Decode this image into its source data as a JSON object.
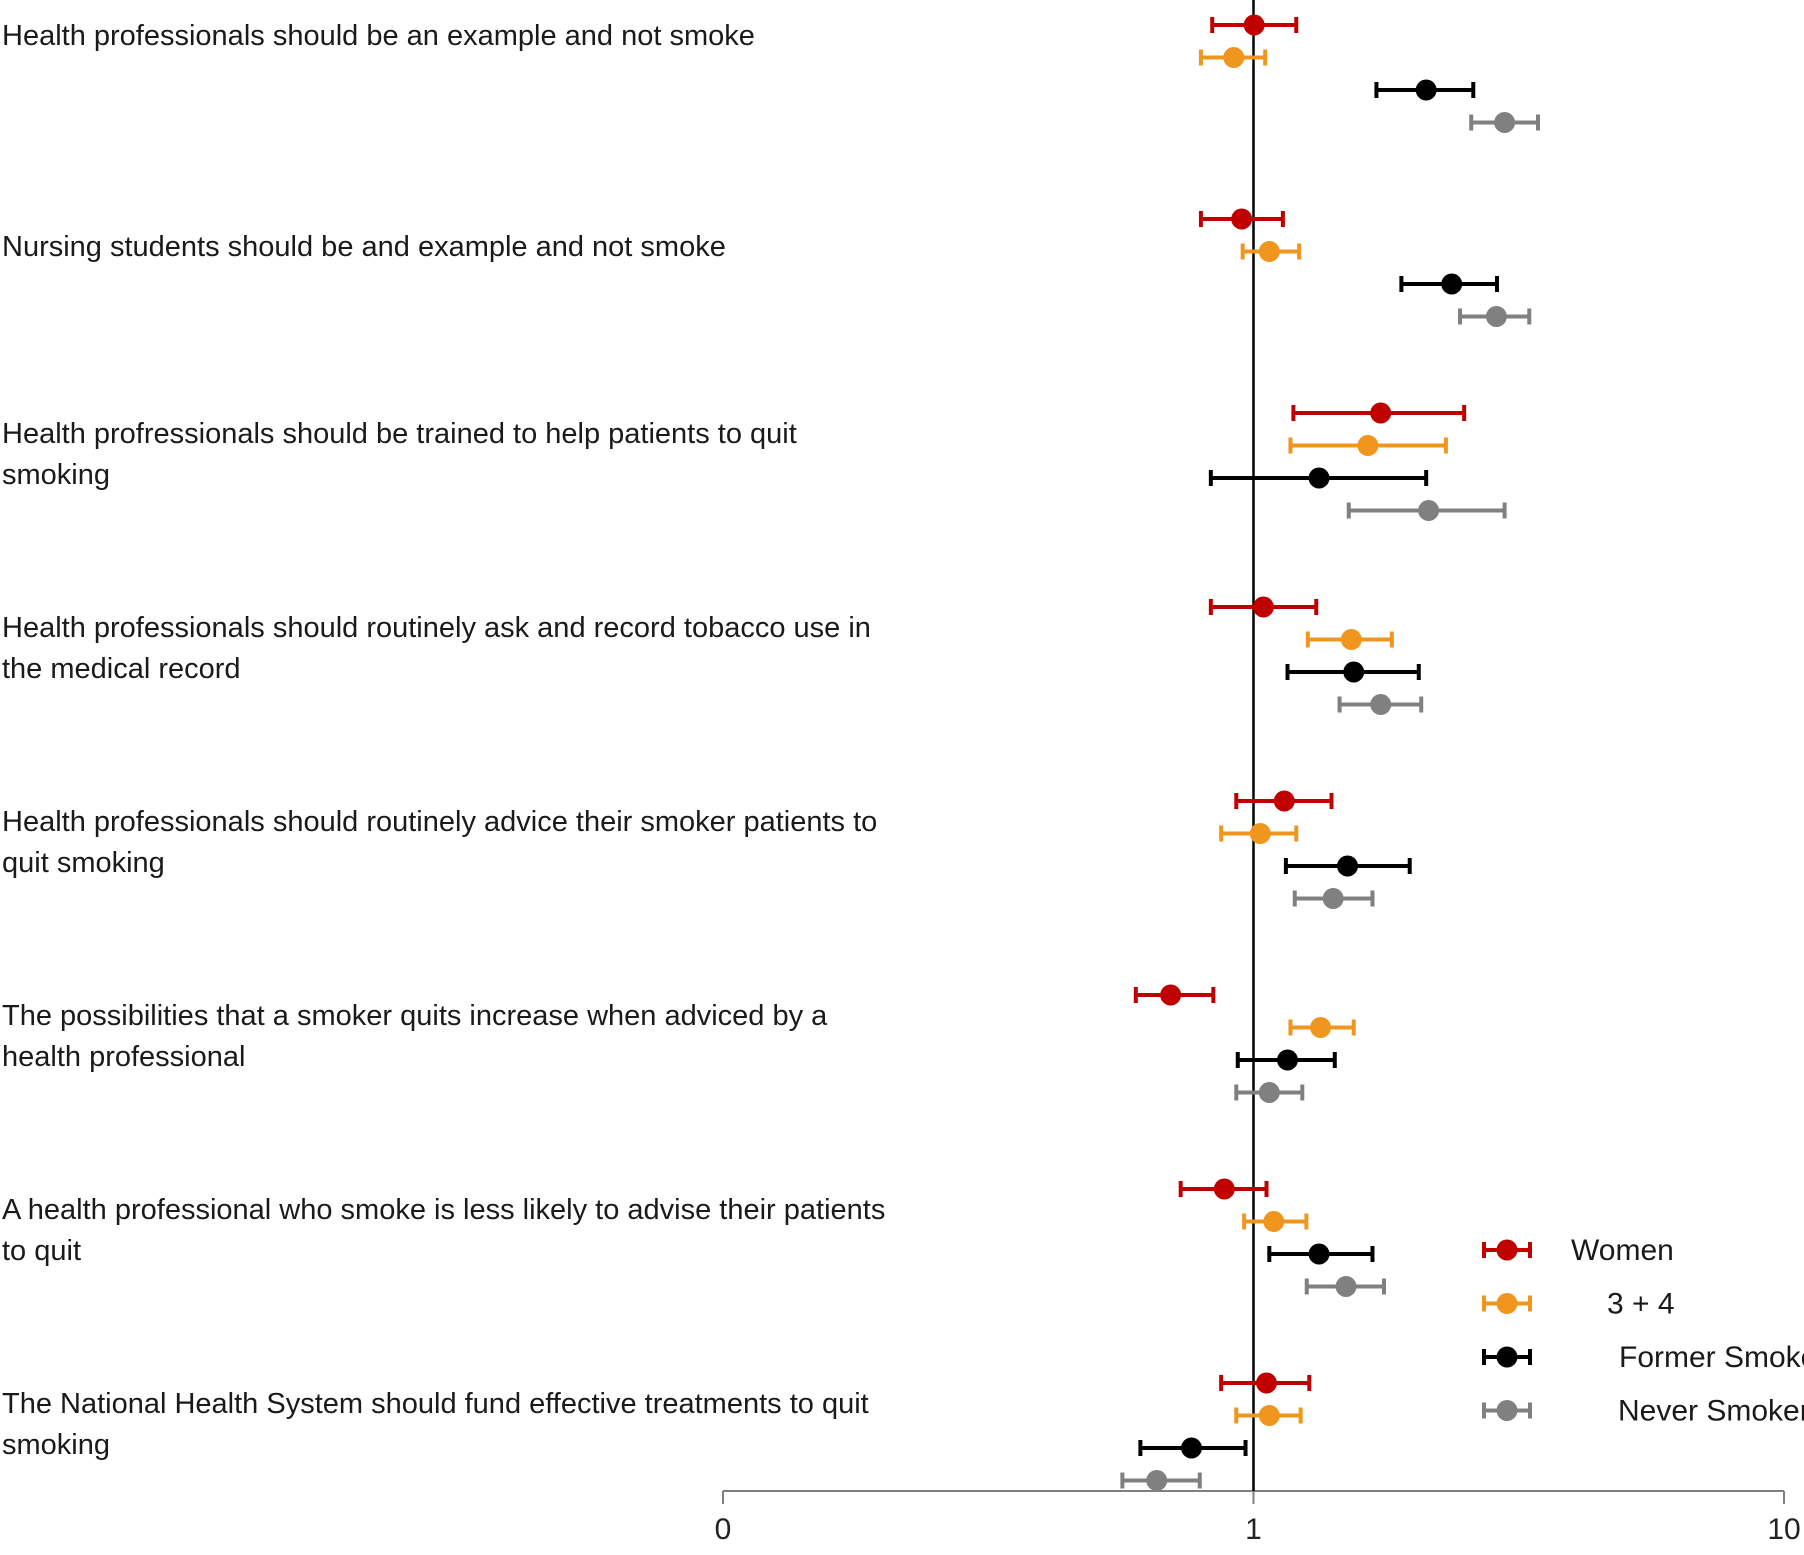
{
  "chart_data": {
    "type": "forest",
    "title": "",
    "xlabel": "",
    "ylabel": "",
    "x_scale": "log",
    "x_ticks": [
      {
        "value": 0.1,
        "label": "0"
      },
      {
        "value": 1,
        "label": "1"
      },
      {
        "value": 10,
        "label": "10"
      }
    ],
    "reference_line": 1,
    "legend_position": "bottom-right",
    "series": [
      {
        "name": "Women",
        "color": "#c00000"
      },
      {
        "name": "3 + 4",
        "color": "#f0961e"
      },
      {
        "name": "Former Smoker",
        "color": "#000000"
      },
      {
        "name": "Never Smoker",
        "color": "#808080"
      }
    ],
    "items": [
      {
        "label_lines": [
          "Health professionals should be an example and not smoke"
        ],
        "points": [
          {
            "series": "Women",
            "est": 1.003,
            "lo": 0.836,
            "hi": 1.204
          },
          {
            "series": "3 + 4",
            "est": 0.918,
            "lo": 0.796,
            "hi": 1.052
          },
          {
            "series": "Former Smoker",
            "est": 2.116,
            "lo": 1.705,
            "hi": 2.596
          },
          {
            "series": "Never Smoker",
            "est": 2.974,
            "lo": 2.573,
            "hi": 3.438
          }
        ]
      },
      {
        "label_lines": [
          "Nursing students should be and example and not smoke"
        ],
        "points": [
          {
            "series": "Women",
            "est": 0.95,
            "lo": 0.796,
            "hi": 1.136
          },
          {
            "series": "3 + 4",
            "est": 1.071,
            "lo": 0.954,
            "hi": 1.219
          },
          {
            "series": "Former Smoker",
            "est": 2.364,
            "lo": 1.9,
            "hi": 2.877
          },
          {
            "series": "Never Smoker",
            "est": 2.87,
            "lo": 2.451,
            "hi": 3.31
          }
        ]
      },
      {
        "label_lines": [
          "Health profressionals should be trained to help patients to quit",
          "smoking"
        ],
        "points": [
          {
            "series": "Women",
            "est": 1.737,
            "lo": 1.189,
            "hi": 2.495
          },
          {
            "series": "3 + 4",
            "est": 1.643,
            "lo": 1.174,
            "hi": 2.305
          },
          {
            "series": "Former Smoker",
            "est": 1.329,
            "lo": 0.831,
            "hi": 2.116
          },
          {
            "series": "Never Smoker",
            "est": 2.138,
            "lo": 1.512,
            "hi": 2.974
          }
        ]
      },
      {
        "label_lines": [
          "Health professionals should routinely ask and record tobacco use in",
          "the medical record"
        ],
        "points": [
          {
            "series": "Women",
            "est": 1.044,
            "lo": 0.831,
            "hi": 1.313
          },
          {
            "series": "3 + 4",
            "est": 1.529,
            "lo": 1.266,
            "hi": 1.823
          },
          {
            "series": "Former Smoker",
            "est": 1.545,
            "lo": 1.159,
            "hi": 2.049
          },
          {
            "series": "Never Smoker",
            "est": 1.737,
            "lo": 1.453,
            "hi": 2.071
          }
        ]
      },
      {
        "label_lines": [
          "Health professionals should routinely advice their smoker patients to",
          "quit smoking"
        ],
        "points": [
          {
            "series": "Women",
            "est": 1.143,
            "lo": 0.928,
            "hi": 1.403
          },
          {
            "series": "3 + 4",
            "est": 1.03,
            "lo": 0.869,
            "hi": 1.204
          },
          {
            "series": "Former Smoker",
            "est": 1.504,
            "lo": 1.151,
            "hi": 1.97
          },
          {
            "series": "Never Smoker",
            "est": 1.413,
            "lo": 1.196,
            "hi": 1.676
          }
        ]
      },
      {
        "label_lines": [
          "The possibilities that a smoker quits increase when adviced by a",
          "health professional"
        ],
        "points": [
          {
            "series": "Women",
            "est": 0.698,
            "lo": 0.6,
            "hi": 0.84
          },
          {
            "series": "3 + 4",
            "est": 1.338,
            "lo": 1.174,
            "hi": 1.545
          },
          {
            "series": "Former Smoker",
            "est": 1.159,
            "lo": 0.934,
            "hi": 1.423
          },
          {
            "series": "Never Smoker",
            "est": 1.071,
            "lo": 0.928,
            "hi": 1.236
          }
        ]
      },
      {
        "label_lines": [
          "A health professional who smoke is less likely to advise their patients",
          "to quit"
        ],
        "points": [
          {
            "series": "Women",
            "est": 0.881,
            "lo": 0.729,
            "hi": 1.058
          },
          {
            "series": "3 + 4",
            "est": 1.092,
            "lo": 0.96,
            "hi": 1.258
          },
          {
            "series": "Former Smoker",
            "est": 1.329,
            "lo": 1.071,
            "hi": 1.676
          },
          {
            "series": "Never Smoker",
            "est": 1.494,
            "lo": 1.26,
            "hi": 1.762
          }
        ]
      },
      {
        "label_lines": [
          "The National Health System should fund effective treatments to quit",
          "smoking"
        ],
        "points": [
          {
            "series": "Women",
            "est": 1.058,
            "lo": 0.869,
            "hi": 1.274
          },
          {
            "series": "3 + 4",
            "est": 1.071,
            "lo": 0.928,
            "hi": 1.227
          },
          {
            "series": "Former Smoker",
            "est": 0.764,
            "lo": 0.612,
            "hi": 0.966
          },
          {
            "series": "Never Smoker",
            "est": 0.657,
            "lo": 0.566,
            "hi": 0.792
          }
        ]
      }
    ]
  }
}
